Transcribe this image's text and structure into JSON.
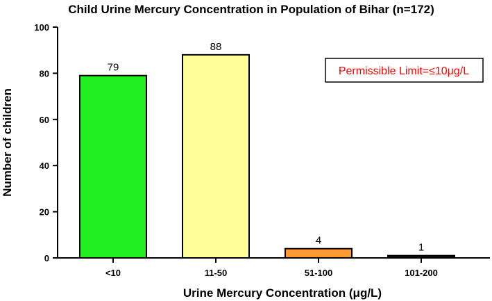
{
  "chart_data": {
    "type": "bar",
    "title": "Child Urine Mercury Concentration in Population of Bihar (n=172)",
    "xlabel": "Urine Mercury Concentration (μg/L)",
    "ylabel": "Number of children",
    "categories": [
      "<10",
      "11-50",
      "51-100",
      "101-200"
    ],
    "values": [
      79,
      88,
      4,
      1
    ],
    "bar_colors": [
      "#22ee22",
      "#ffff99",
      "#ff9933",
      "#111111"
    ],
    "data_labels": [
      "79",
      "88",
      "4",
      "1"
    ],
    "ylim": [
      0,
      100
    ],
    "yticks": [
      0,
      20,
      40,
      60,
      80,
      100
    ],
    "ytick_labels": [
      "0",
      "20",
      "40",
      "60",
      "80",
      "100"
    ],
    "grid": false,
    "legend": "none",
    "annotation": {
      "text": "Permissible Limit=≤10μg/L",
      "color": "#ff0000",
      "border_color": "#000000",
      "placement": "top-right"
    }
  }
}
